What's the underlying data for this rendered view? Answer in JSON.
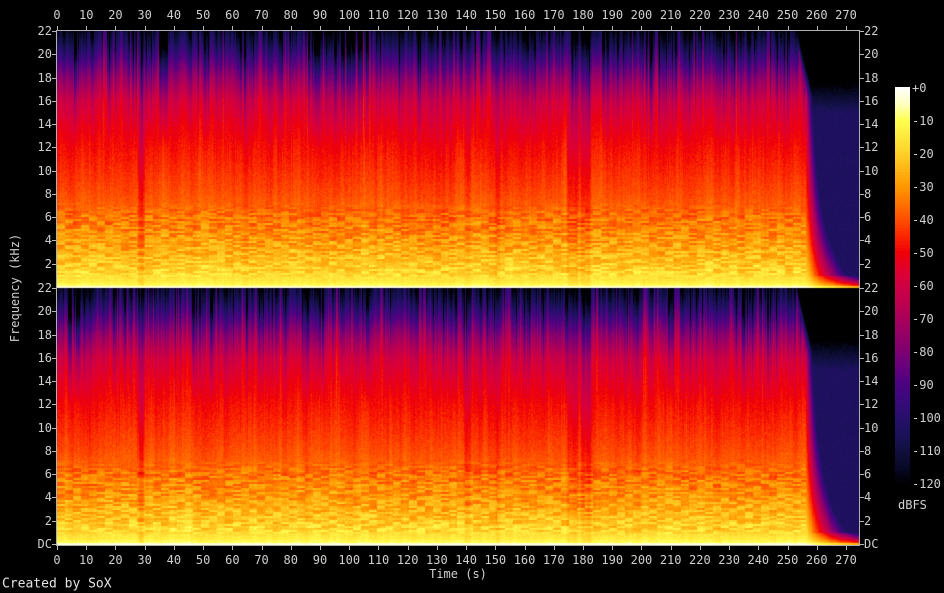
{
  "window": {
    "background": "#000000",
    "text_color": "#cfcfcf",
    "footer": "Created by SoX"
  },
  "chart_data": {
    "type": "heatmap",
    "subtype": "stereo-audio-spectrogram",
    "title": "",
    "xlabel": "Time (s)",
    "ylabel": "Frequency (kHz)",
    "channels": 2,
    "grid": false,
    "legend_position": "colorbar-right",
    "x_ticks": [
      "0",
      "10",
      "20",
      "30",
      "40",
      "50",
      "60",
      "70",
      "80",
      "90",
      "100",
      "110",
      "120",
      "130",
      "140",
      "150",
      "160",
      "170",
      "180",
      "190",
      "200",
      "210",
      "220",
      "230",
      "240",
      "250",
      "260",
      "270"
    ],
    "x_tick_step_s": 10,
    "x_range_s": [
      0,
      274.4
    ],
    "y_ticks_khz": [
      "22",
      "20",
      "18",
      "16",
      "14",
      "12",
      "10",
      "8",
      "6",
      "4",
      "2"
    ],
    "y_bottom_label": "DC",
    "y_range_khz": [
      0,
      22
    ],
    "colorbar": {
      "label": "dBFS",
      "range_db": [
        0,
        -120
      ],
      "ticks": [
        "+0",
        "-10",
        "-20",
        "-30",
        "-40",
        "-50",
        "-60",
        "-70",
        "-80",
        "-90",
        "-100",
        "-110",
        "-120"
      ],
      "palette_stops": [
        [
          0,
          "#ffffff"
        ],
        [
          -5,
          "#ffffc0"
        ],
        [
          -10,
          "#ffff50"
        ],
        [
          -15,
          "#ffe83c"
        ],
        [
          -20,
          "#ffd028"
        ],
        [
          -25,
          "#ffb414"
        ],
        [
          -30,
          "#ff9800"
        ],
        [
          -35,
          "#ff7300"
        ],
        [
          -40,
          "#ff4e00"
        ],
        [
          -45,
          "#fb2500"
        ],
        [
          -50,
          "#f00007"
        ],
        [
          -55,
          "#e1002e"
        ],
        [
          -60,
          "#cf0045"
        ],
        [
          -65,
          "#bd004e"
        ],
        [
          -70,
          "#a9005c"
        ],
        [
          -75,
          "#930067"
        ],
        [
          -80,
          "#7c0071"
        ],
        [
          -85,
          "#64007e"
        ],
        [
          -90,
          "#4a0480"
        ],
        [
          -95,
          "#380a7a"
        ],
        [
          -100,
          "#26106a"
        ],
        [
          -105,
          "#1a1158"
        ],
        [
          -110,
          "#10103e"
        ],
        [
          -115,
          "#080826"
        ],
        [
          -120,
          "#000000"
        ]
      ]
    },
    "content": {
      "spectrum_envelope_db_by_khz": [
        [
          0,
          -3
        ],
        [
          0.15,
          -9
        ],
        [
          0.5,
          -14
        ],
        [
          1,
          -17
        ],
        [
          2,
          -21
        ],
        [
          3,
          -25
        ],
        [
          4,
          -29
        ],
        [
          6,
          -35
        ],
        [
          8,
          -40
        ],
        [
          10,
          -44
        ],
        [
          12,
          -48
        ],
        [
          14,
          -53
        ],
        [
          16,
          -60
        ],
        [
          17,
          -68
        ],
        [
          18,
          -76
        ],
        [
          19,
          -86
        ],
        [
          20,
          -96
        ],
        [
          21,
          -106
        ],
        [
          22,
          -114
        ]
      ],
      "music_end_s": 256,
      "quiet_bands_s": [
        [
          28.0,
          29.3,
          15
        ],
        [
          139.8,
          140.9,
          8
        ],
        [
          150.2,
          151.2,
          8
        ],
        [
          174.8,
          178.0,
          10
        ],
        [
          179.3,
          182.2,
          13
        ]
      ],
      "tail": {
        "decay_db_per_s_base": 5,
        "decay_db_per_s_per_khz": 1,
        "low_freq_decay_base": 1.5,
        "low_freq_decay_per_khz": 3.5,
        "background_wash_db": -103
      }
    }
  }
}
